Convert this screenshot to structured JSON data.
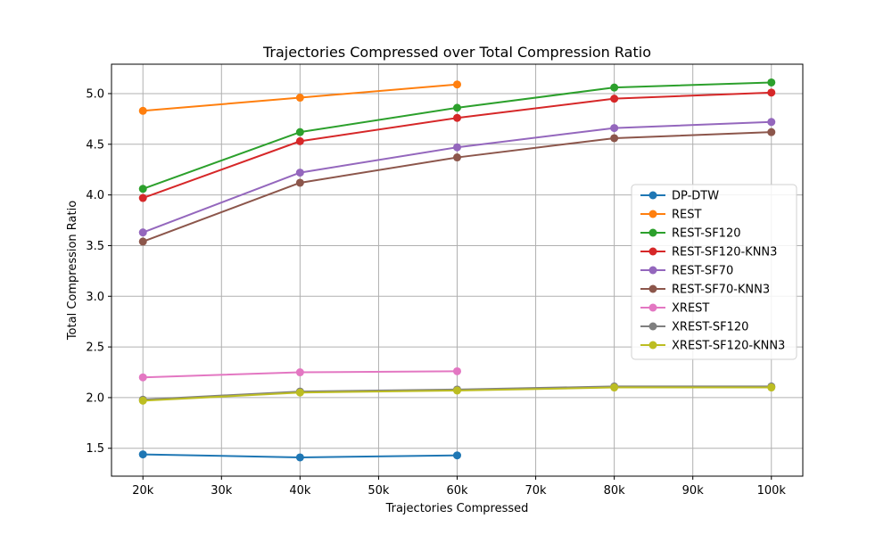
{
  "chart_data": {
    "type": "line",
    "title": "Trajectories Compressed over Total Compression Ratio",
    "xlabel": "Trajectories Compressed",
    "ylabel": "Total Compression Ratio",
    "xlim": [
      16000,
      104000
    ],
    "ylim": [
      1.225,
      5.29
    ],
    "x_ticks": [
      20000,
      30000,
      40000,
      50000,
      60000,
      70000,
      80000,
      90000,
      100000
    ],
    "x_tick_labels": [
      "20k",
      "30k",
      "40k",
      "50k",
      "60k",
      "70k",
      "80k",
      "90k",
      "100k"
    ],
    "y_ticks": [
      1.5,
      2.0,
      2.5,
      3.0,
      3.5,
      4.0,
      4.5,
      5.0
    ],
    "y_tick_labels": [
      "1.5",
      "2.0",
      "2.5",
      "3.0",
      "3.5",
      "4.0",
      "4.5",
      "5.0"
    ],
    "grid": true,
    "legend_position": "center-right",
    "series": [
      {
        "name": "DP-DTW",
        "color": "#1f77b4",
        "x": [
          20000,
          40000,
          60000
        ],
        "values": [
          1.44,
          1.41,
          1.43
        ]
      },
      {
        "name": "REST",
        "color": "#ff7f0e",
        "x": [
          20000,
          40000,
          60000
        ],
        "values": [
          4.83,
          4.96,
          5.09
        ]
      },
      {
        "name": "REST-SF120",
        "color": "#2ca02c",
        "x": [
          20000,
          40000,
          60000,
          80000,
          100000
        ],
        "values": [
          4.06,
          4.62,
          4.86,
          5.06,
          5.11
        ]
      },
      {
        "name": "REST-SF120-KNN3",
        "color": "#d62728",
        "x": [
          20000,
          40000,
          60000,
          80000,
          100000
        ],
        "values": [
          3.97,
          4.53,
          4.76,
          4.95,
          5.01
        ]
      },
      {
        "name": "REST-SF70",
        "color": "#9467bd",
        "x": [
          20000,
          40000,
          60000,
          80000,
          100000
        ],
        "values": [
          3.63,
          4.22,
          4.47,
          4.66,
          4.72
        ]
      },
      {
        "name": "REST-SF70-KNN3",
        "color": "#8c564b",
        "x": [
          20000,
          40000,
          60000,
          80000,
          100000
        ],
        "values": [
          3.54,
          4.12,
          4.37,
          4.56,
          4.62
        ]
      },
      {
        "name": "XREST",
        "color": "#e377c2",
        "x": [
          20000,
          40000,
          60000
        ],
        "values": [
          2.2,
          2.25,
          2.26
        ]
      },
      {
        "name": "XREST-SF120",
        "color": "#7f7f7f",
        "x": [
          20000,
          40000,
          60000,
          80000,
          100000
        ],
        "values": [
          1.98,
          2.06,
          2.08,
          2.11,
          2.11
        ]
      },
      {
        "name": "XREST-SF120-KNN3",
        "color": "#bcbd22",
        "x": [
          20000,
          40000,
          60000,
          80000,
          100000
        ],
        "values": [
          1.97,
          2.05,
          2.07,
          2.1,
          2.1
        ]
      }
    ]
  }
}
